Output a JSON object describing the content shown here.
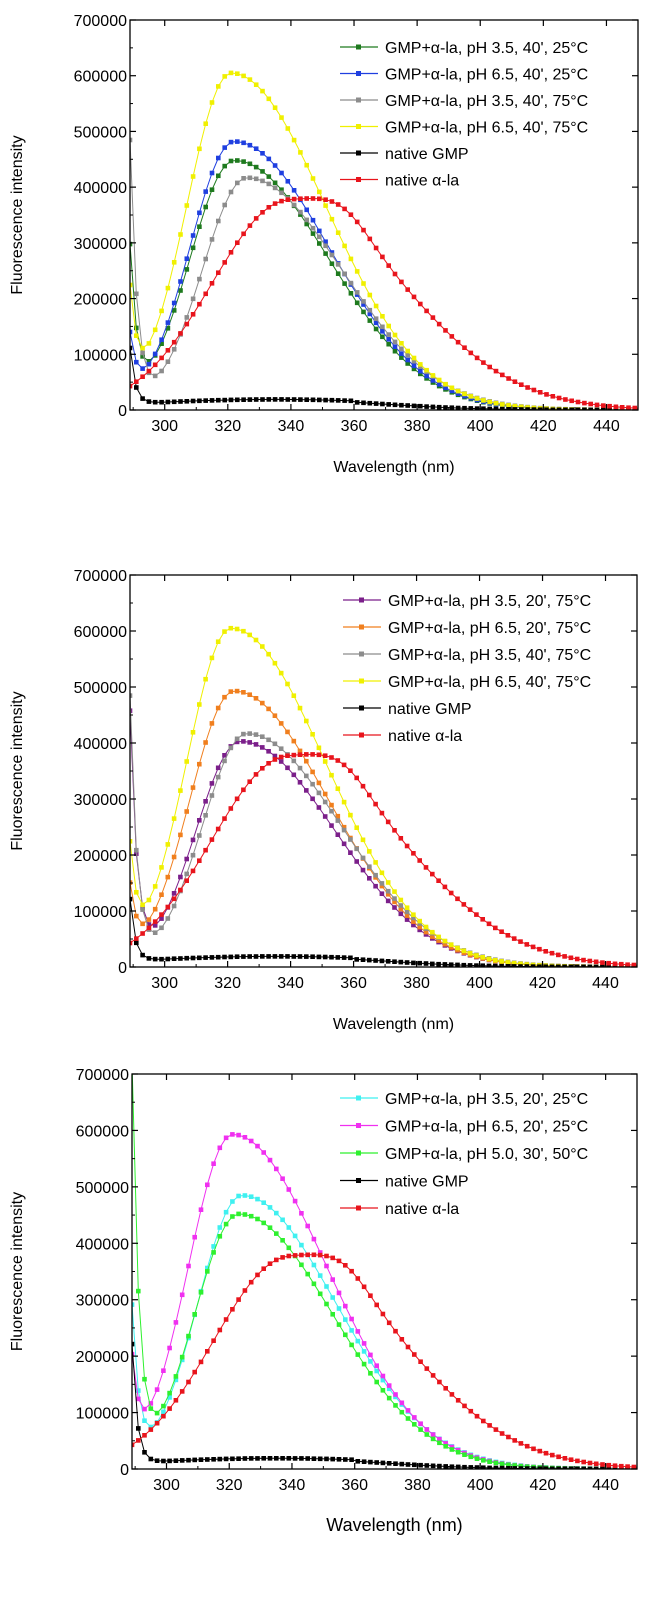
{
  "panels": [
    {
      "xlabel": "Wavelength (nm)",
      "ylabel": "Fluorescence intensity",
      "legend": [
        "GMP+α-la, pH 3.5, 40', 25°C",
        "GMP+α-la, pH 6.5, 40', 25°C",
        "GMP+α-la, pH 3.5, 40', 75°C",
        "GMP+α-la, pH 6.5, 40', 75°C",
        "native GMP",
        "native α-la"
      ]
    },
    {
      "xlabel": "Wavelength (nm)",
      "ylabel": "Fluorescence intensity",
      "legend": [
        "GMP+α-la, pH 3.5, 20', 75°C",
        "GMP+α-la, pH 6.5, 20', 75°C",
        "GMP+α-la, pH 3.5, 40', 75°C",
        "GMP+α-la, pH 6.5, 40', 75°C",
        "native GMP",
        "native α-la"
      ]
    },
    {
      "xlabel": "Wavelength (nm)",
      "ylabel": "Fluorescence intensity",
      "legend": [
        "GMP+α-la, pH 3.5, 20', 25°C",
        "GMP+α-la, pH 6.5, 20', 25°C",
        "GMP+α-la, pH 5.0, 30', 50°C",
        "native GMP",
        "native α-la"
      ]
    }
  ],
  "chart_data": [
    {
      "type": "line",
      "xlabel": "Wavelength (nm)",
      "ylabel": "Fluorescence intensity",
      "xlim": [
        289,
        450
      ],
      "ylim": [
        0,
        700000
      ],
      "xticks": [
        300,
        320,
        340,
        360,
        380,
        400,
        420,
        440
      ],
      "yticks": [
        0,
        100000,
        200000,
        300000,
        400000,
        500000,
        600000,
        700000
      ],
      "legend_position": "top-right",
      "grid": false,
      "series": [
        {
          "name": "GMP+α-la, pH 3.5, 40', 25°C",
          "color": "#1e7a1e",
          "peak_x": 322,
          "peak_y": 448000,
          "start_y": 270000,
          "min_x": 294,
          "min_y": 100000
        },
        {
          "name": "GMP+α-la, pH 6.5, 40', 25°C",
          "color": "#1f3fe0",
          "peak_x": 322,
          "peak_y": 482000,
          "start_y": 110000,
          "min_x": 295,
          "min_y": 68000
        },
        {
          "name": "GMP+α-la, pH 3.5, 40', 75°C",
          "color": "#8c8c8c",
          "peak_x": 326,
          "peak_y": 417000,
          "start_y": 472000,
          "min_x": 294,
          "min_y": 115000
        },
        {
          "name": "GMP+α-la, pH 6.5, 40', 75°C",
          "color": "#f0f000",
          "peak_x": 321,
          "peak_y": 605000,
          "start_y": 180000,
          "min_x": 295,
          "min_y": 105000
        },
        {
          "name": "native GMP",
          "color": "#000000",
          "type": "gmp",
          "start_y": 100000,
          "peak_y": 19000
        },
        {
          "name": "native α-la",
          "color": "#e8141c",
          "type": "ala",
          "peak_x": 339,
          "peak_y": 375000
        }
      ]
    },
    {
      "type": "line",
      "xlabel": "Wavelength (nm)",
      "ylabel": "Fluorescence intensity",
      "xlim": [
        289,
        450
      ],
      "ylim": [
        0,
        700000
      ],
      "xticks": [
        300,
        320,
        340,
        360,
        380,
        400,
        420,
        440
      ],
      "yticks": [
        0,
        100000,
        200000,
        300000,
        400000,
        500000,
        600000,
        700000
      ],
      "legend_position": "top-right",
      "grid": false,
      "series": [
        {
          "name": "GMP+α-la, pH 3.5, 20', 75°C",
          "color": "#7b1f8a",
          "peak_x": 324,
          "peak_y": 403000,
          "start_y": 440000,
          "min_x": 294,
          "min_y": 90000
        },
        {
          "name": "GMP+α-la, pH 6.5, 20', 75°C",
          "color": "#f07f1e",
          "peak_x": 322,
          "peak_y": 493000,
          "start_y": 120000,
          "min_x": 293,
          "min_y": 78000
        },
        {
          "name": "GMP+α-la, pH 3.5, 40', 75°C",
          "color": "#8c8c8c",
          "peak_x": 326,
          "peak_y": 417000,
          "start_y": 472000,
          "min_x": 294,
          "min_y": 115000
        },
        {
          "name": "GMP+α-la, pH 6.5, 40', 75°C",
          "color": "#f0f000",
          "peak_x": 321,
          "peak_y": 605000,
          "start_y": 180000,
          "min_x": 295,
          "min_y": 105000
        },
        {
          "name": "native GMP",
          "color": "#000000",
          "type": "gmp",
          "start_y": 110000,
          "peak_y": 19000
        },
        {
          "name": "native α-la",
          "color": "#e8141c",
          "type": "ala",
          "peak_x": 339,
          "peak_y": 375000
        }
      ]
    },
    {
      "type": "line",
      "xlabel": "Wavelength (nm)",
      "ylabel": "Fluorescence intensity",
      "xlim": [
        289,
        450
      ],
      "ylim": [
        0,
        700000
      ],
      "xticks": [
        300,
        320,
        340,
        360,
        380,
        400,
        420,
        440
      ],
      "yticks": [
        0,
        100000,
        200000,
        300000,
        400000,
        500000,
        600000,
        700000
      ],
      "legend_position": "top-right",
      "grid": false,
      "series": [
        {
          "name": "GMP+α-la, pH 3.5, 20', 25°C",
          "color": "#3ff0f0",
          "peak_x": 324,
          "peak_y": 485000,
          "start_y": 270000,
          "min_x": 295,
          "min_y": 110000
        },
        {
          "name": "GMP+α-la, pH 6.5, 20', 25°C",
          "color": "#f030f0",
          "peak_x": 321,
          "peak_y": 593000,
          "start_y": 160000,
          "min_x": 294,
          "min_y": 75000
        },
        {
          "name": "GMP+α-la, pH 5.0, 30', 50°C",
          "color": "#2ef02e",
          "peak_x": 323,
          "peak_y": 452000,
          "start_y": 700000,
          "min_x": 295,
          "min_y": 120000
        },
        {
          "name": "native GMP",
          "color": "#000000",
          "type": "gmp",
          "start_y": 210000,
          "peak_y": 19000
        },
        {
          "name": "native α-la",
          "color": "#e8141c",
          "type": "ala",
          "peak_x": 339,
          "peak_y": 375000
        }
      ]
    }
  ]
}
